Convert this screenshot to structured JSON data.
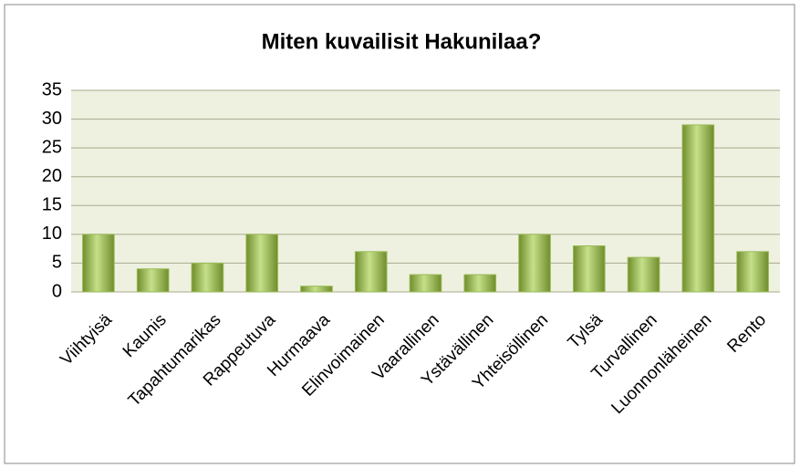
{
  "chart_data": {
    "type": "bar",
    "title": "Miten kuvailisit Hakunilaa?",
    "categories": [
      "Viihtyisä",
      "Kaunis",
      "Tapahtumarikas",
      "Rappeutuva",
      "Hurmaava",
      "Elinvoimainen",
      "Vaarallinen",
      "Ystävällinen",
      "Yhteisöllinen",
      "Tylsä",
      "Turvallinen",
      "Luonnonläheinen",
      "Rento"
    ],
    "values": [
      10,
      4,
      5,
      10,
      1,
      7,
      3,
      3,
      10,
      8,
      6,
      29,
      7
    ],
    "color": "#9bbb59",
    "ylim": [
      0,
      35
    ],
    "yticks": [
      0,
      5,
      10,
      15,
      20,
      25,
      30,
      35
    ],
    "grid": true
  }
}
